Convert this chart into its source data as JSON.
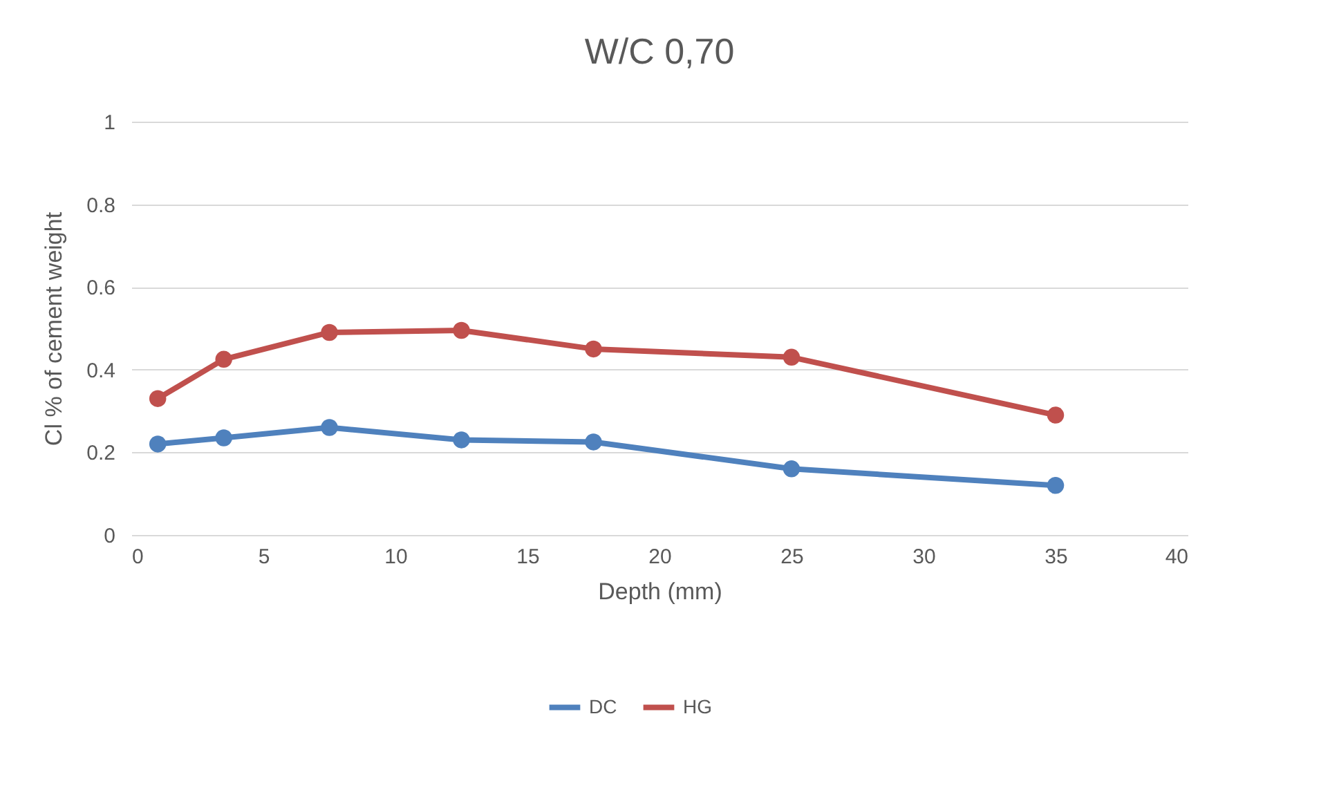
{
  "chart_data": {
    "type": "line",
    "title": "W/C 0,70",
    "xlabel": "Depth (mm)",
    "ylabel": "Cl % of cement weight",
    "x": [
      1,
      3.5,
      7.5,
      12.5,
      17.5,
      25,
      35
    ],
    "series": [
      {
        "name": "DC",
        "color": "#4f81bd",
        "values": [
          0.22,
          0.235,
          0.26,
          0.23,
          0.225,
          0.16,
          0.12
        ]
      },
      {
        "name": "HG",
        "color": "#c0504d",
        "values": [
          0.33,
          0.425,
          0.49,
          0.495,
          0.45,
          0.43,
          0.29
        ]
      }
    ],
    "xlim": [
      0,
      40
    ],
    "xticks": [
      0,
      5,
      10,
      15,
      20,
      25,
      30,
      35,
      40
    ],
    "ylim": [
      0,
      1
    ],
    "yticks": [
      0,
      0.2,
      0.4,
      0.6,
      0.8,
      1
    ],
    "grid": "y",
    "legend": "bottom",
    "marker": "circle",
    "line_style": "solid"
  }
}
